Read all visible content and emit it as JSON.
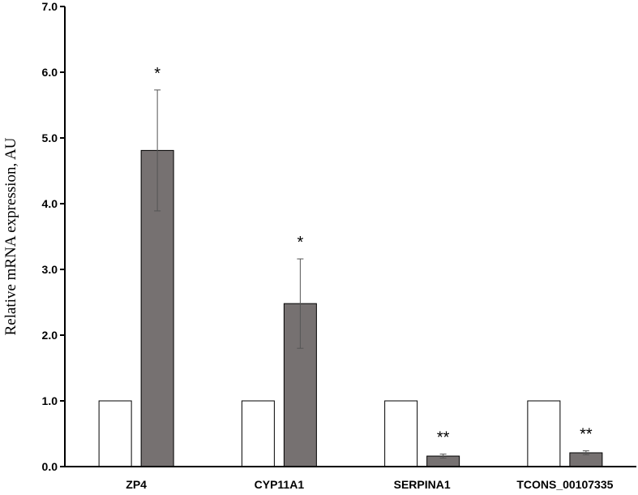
{
  "chart_data": {
    "type": "bar",
    "title": "",
    "xlabel": "",
    "ylabel": "Relative mRNA expression, AU",
    "ylim": [
      0,
      7
    ],
    "yticks": [
      "0.0",
      "1.0",
      "2.0",
      "3.0",
      "4.0",
      "5.0",
      "6.0",
      "7.0"
    ],
    "grid": false,
    "legend": "none",
    "categories": [
      "ZP4",
      "CYP11A1",
      "SERPINA1",
      "TCONS_00107335"
    ],
    "series": [
      {
        "values": [
          1.0,
          1.0,
          1.0,
          1.0
        ],
        "errors": [
          0,
          0,
          0,
          0
        ],
        "color": "#ffffff"
      },
      {
        "values": [
          4.81,
          2.48,
          0.16,
          0.21
        ],
        "errors": [
          0.92,
          0.68,
          0.03,
          0.03
        ],
        "color": "#767171"
      }
    ],
    "annotations": [
      "*",
      "*",
      "**",
      "**"
    ]
  }
}
